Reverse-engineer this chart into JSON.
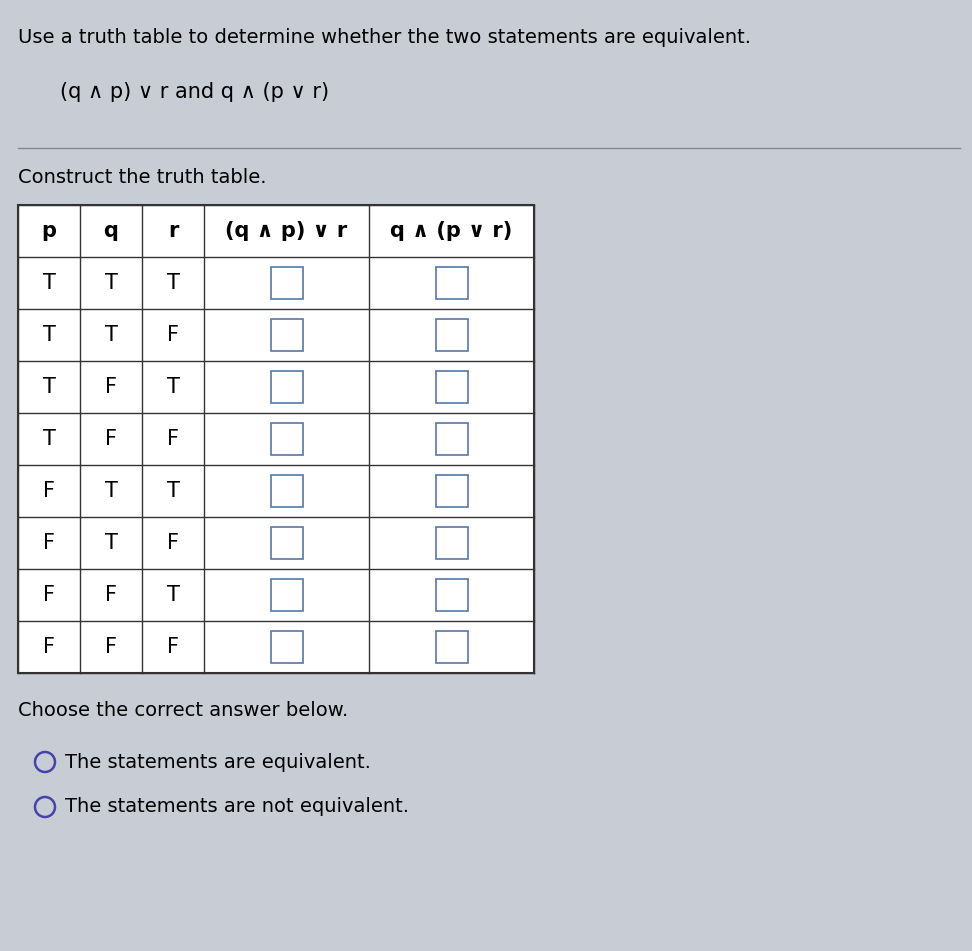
{
  "title_line1": "Use a truth table to determine whether the two statements are equivalent.",
  "subtitle": "(q ∧ p) ∨ r and q ∧ (p ∨ r)",
  "construct_label": "Construct the truth table.",
  "col_headers": [
    "p",
    "q",
    "r",
    "(q ∧ p) ∨ r",
    "q ∧ (p ∨ r)"
  ],
  "rows": [
    [
      "T",
      "T",
      "T",
      "",
      ""
    ],
    [
      "T",
      "T",
      "F",
      "",
      ""
    ],
    [
      "T",
      "F",
      "T",
      "",
      ""
    ],
    [
      "T",
      "F",
      "F",
      "",
      ""
    ],
    [
      "F",
      "T",
      "T",
      "",
      ""
    ],
    [
      "F",
      "T",
      "F",
      "",
      ""
    ],
    [
      "F",
      "F",
      "T",
      "",
      ""
    ],
    [
      "F",
      "F",
      "F",
      "",
      ""
    ]
  ],
  "choose_label": "Choose the correct answer below.",
  "option1": "The statements are equivalent.",
  "option2": "The statements are not equivalent.",
  "bg_color": "#c8ccd4",
  "table_bg": "#ffffff",
  "cell_border_color": "#333333",
  "text_color": "#000000",
  "title_fontsize": 14,
  "subtitle_fontsize": 15,
  "body_fontsize": 14,
  "table_fontsize": 15,
  "sep_line_color": "#888888",
  "radio_color": "#4444aa",
  "checkbox_border_color": "#5577aa"
}
